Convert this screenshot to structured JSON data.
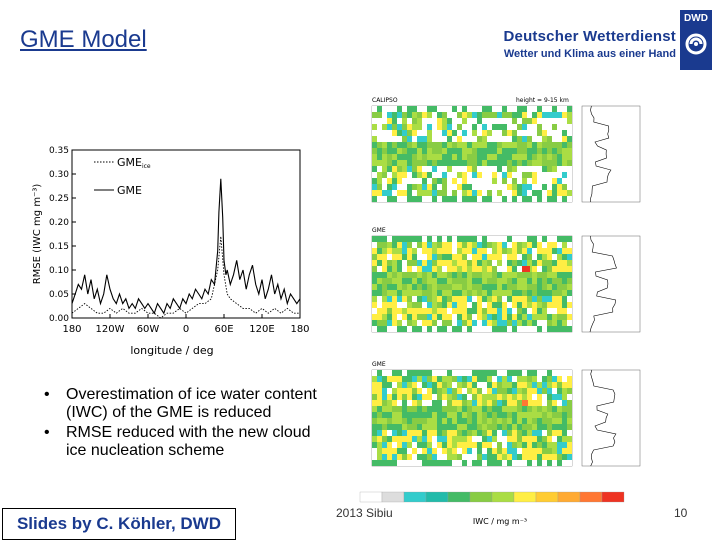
{
  "slide": {
    "title": "GME Model",
    "logo": {
      "abbr": "DWD",
      "name": "Deutscher Wetterdienst",
      "tagline": "Wetter und Klima aus einer Hand"
    },
    "bullets": [
      "Overestimation of ice water content (IWC) of the GME is reduced",
      "RMSE reduced with the new cloud ice nucleation scheme"
    ],
    "credit": "Slides by C. Köhler, DWD",
    "footer_year": "2013 Sibiu",
    "page_number": "10"
  },
  "maps": {
    "panel_labels": [
      "CALIPSO",
      "GME",
      "GME"
    ],
    "height_label": "height = 9-15 km",
    "colorbar_label": "IWC / mg m⁻³",
    "colorbar_colors": [
      "#ffffff",
      "#dddddd",
      "#33cccc",
      "#22bbaa",
      "#44bb66",
      "#88cc44",
      "#aadd44",
      "#ffee44",
      "#ffcc33",
      "#ffaa33",
      "#ff7733",
      "#ee3322"
    ]
  },
  "chart_data": {
    "type": "line",
    "xlabel": "longitude / deg",
    "ylabel": "RMSE (IWC mg m⁻³)",
    "xlim": [
      -180,
      180
    ],
    "ylim": [
      0,
      0.35
    ],
    "xticks": [
      {
        "value": -180,
        "label": "180"
      },
      {
        "value": -120,
        "label": "120W"
      },
      {
        "value": -60,
        "label": "60W"
      },
      {
        "value": 0,
        "label": "0"
      },
      {
        "value": 60,
        "label": "60E"
      },
      {
        "value": 120,
        "label": "120E"
      },
      {
        "value": 180,
        "label": "180"
      }
    ],
    "yticks": [
      {
        "value": 0.0,
        "label": "0.00"
      },
      {
        "value": 0.05,
        "label": "0.05"
      },
      {
        "value": 0.1,
        "label": "0.10"
      },
      {
        "value": 0.15,
        "label": "0.15"
      },
      {
        "value": 0.2,
        "label": "0.20"
      },
      {
        "value": 0.25,
        "label": "0.25"
      },
      {
        "value": 0.3,
        "label": "0.30"
      },
      {
        "value": 0.35,
        "label": "0.35"
      }
    ],
    "legend_position": "top-left",
    "series": [
      {
        "name": "GME",
        "name_sub": "ice",
        "style": "dotted",
        "x": [
          -180,
          -170,
          -160,
          -150,
          -140,
          -130,
          -120,
          -110,
          -100,
          -90,
          -80,
          -70,
          -60,
          -50,
          -40,
          -30,
          -20,
          -10,
          0,
          10,
          20,
          30,
          40,
          50,
          55,
          60,
          65,
          70,
          80,
          90,
          100,
          110,
          120,
          130,
          140,
          150,
          160,
          170,
          180
        ],
        "y": [
          0.01,
          0.02,
          0.03,
          0.02,
          0.01,
          0.01,
          0.02,
          0.01,
          0.02,
          0.01,
          0.01,
          0.02,
          0.01,
          0.01,
          0.0,
          0.01,
          0.01,
          0.02,
          0.01,
          0.02,
          0.03,
          0.03,
          0.04,
          0.1,
          0.17,
          0.09,
          0.05,
          0.04,
          0.03,
          0.02,
          0.02,
          0.01,
          0.02,
          0.01,
          0.02,
          0.01,
          0.02,
          0.01,
          0.01
        ]
      },
      {
        "name": "GME",
        "name_sub": "",
        "style": "solid",
        "x": [
          -180,
          -175,
          -170,
          -165,
          -160,
          -155,
          -150,
          -145,
          -140,
          -135,
          -130,
          -125,
          -120,
          -115,
          -110,
          -105,
          -100,
          -95,
          -90,
          -85,
          -80,
          -75,
          -70,
          -65,
          -60,
          -55,
          -50,
          -45,
          -40,
          -35,
          -30,
          -25,
          -20,
          -15,
          -10,
          -5,
          0,
          5,
          10,
          15,
          20,
          25,
          30,
          35,
          40,
          45,
          50,
          52,
          55,
          58,
          60,
          63,
          65,
          70,
          75,
          80,
          85,
          90,
          95,
          100,
          105,
          110,
          115,
          120,
          125,
          130,
          135,
          140,
          145,
          150,
          155,
          160,
          165,
          170,
          175,
          180
        ],
        "y": [
          0.03,
          0.05,
          0.07,
          0.06,
          0.09,
          0.05,
          0.08,
          0.04,
          0.06,
          0.03,
          0.05,
          0.09,
          0.06,
          0.04,
          0.03,
          0.05,
          0.03,
          0.04,
          0.02,
          0.03,
          0.02,
          0.04,
          0.03,
          0.02,
          0.03,
          0.02,
          0.01,
          0.03,
          0.02,
          0.01,
          0.03,
          0.02,
          0.04,
          0.03,
          0.02,
          0.04,
          0.03,
          0.05,
          0.04,
          0.06,
          0.05,
          0.04,
          0.06,
          0.05,
          0.08,
          0.07,
          0.14,
          0.22,
          0.29,
          0.21,
          0.12,
          0.09,
          0.1,
          0.07,
          0.09,
          0.12,
          0.08,
          0.1,
          0.06,
          0.09,
          0.11,
          0.07,
          0.05,
          0.08,
          0.04,
          0.06,
          0.09,
          0.05,
          0.07,
          0.04,
          0.06,
          0.03,
          0.05,
          0.04,
          0.03,
          0.04
        ]
      }
    ]
  }
}
